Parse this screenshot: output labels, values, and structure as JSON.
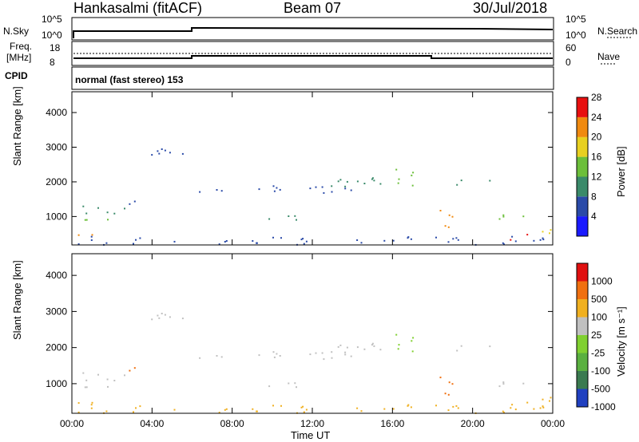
{
  "header": {
    "station": "Hankasalmi (fitACF)",
    "beam": "Beam 07",
    "date": "30/Jul/2018"
  },
  "status_panels": {
    "nsky_label": "N.Sky",
    "nsearch_label": "N.Search",
    "nsky_ticks": [
      "10^5",
      "10^0"
    ],
    "nsearch_ticks": [
      "10^5",
      "10^0"
    ],
    "freq_label_1": "Freq.",
    "freq_label_2": "[MHz]",
    "freq_ticks": [
      "18",
      "8"
    ],
    "nave_label": "Nave",
    "nave_ticks": [
      "60",
      "0"
    ],
    "cpid_label": "CPID",
    "cpid_text": "normal (fast stereo) 153"
  },
  "colorbars": {
    "power": {
      "label": "Power [dB]",
      "ticks": [
        "4",
        "8",
        "12",
        "16",
        "20",
        "24",
        "28"
      ],
      "colors": [
        "#1a1aff",
        "#2a4aa8",
        "#3a8a6a",
        "#6cbf3a",
        "#e8d020",
        "#f08a10",
        "#e81010"
      ]
    },
    "velocity": {
      "label": "Velocity [m s⁻¹]",
      "ticks": [
        "1000",
        "500",
        "100",
        "25",
        "-25",
        "-100",
        "-500",
        "-1000"
      ],
      "colors": [
        "#2040c0",
        "#3a7a50",
        "#5ab040",
        "#80d030",
        "#c0c0c0",
        "#f0b020",
        "#f07010",
        "#e01010"
      ]
    }
  },
  "chart_data": [
    {
      "type": "heatmap",
      "name": "power",
      "ylabel": "Slant Range [km]",
      "yticks": [
        "1000",
        "2000",
        "3000",
        "4000"
      ],
      "xticks": [
        "00:00",
        "04:00",
        "08:00",
        "12:00",
        "16:00",
        "20:00",
        "00:00"
      ],
      "ylim": [
        180,
        4600
      ],
      "xlim_hours": [
        0,
        24
      ]
    },
    {
      "type": "heatmap",
      "name": "velocity",
      "ylabel": "Slant Range [km]",
      "yticks": [
        "1000",
        "2000",
        "3000",
        "4000"
      ],
      "xticks": [
        "00:00",
        "04:00",
        "08:00",
        "12:00",
        "16:00",
        "20:00",
        "00:00"
      ],
      "xlabel": "Time UT",
      "ylim": [
        180,
        4600
      ],
      "xlim_hours": [
        0,
        24
      ]
    }
  ]
}
